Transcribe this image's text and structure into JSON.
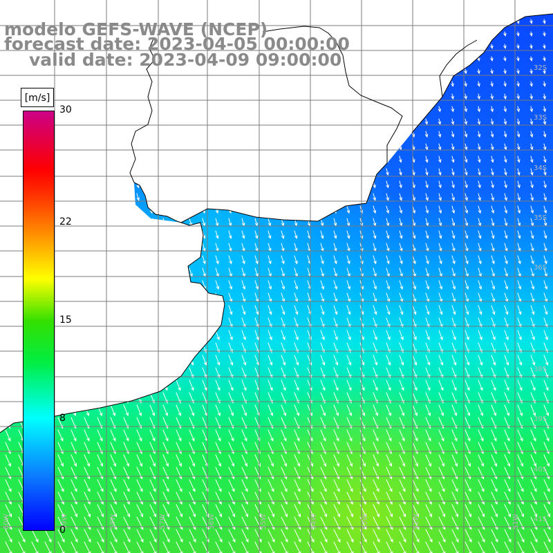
{
  "title": {
    "model": "modelo GEFS-WAVE (NCEP)",
    "forecast": "forecast date: 2023-04-05 00:00:00",
    "valid": "valid date: 2023-04-09 09:00:00"
  },
  "colorbar": {
    "unit": "[m/s]",
    "ticks": [
      "30",
      "22",
      "15",
      "8",
      "0"
    ],
    "tick_values": [
      30,
      22,
      15,
      8,
      0
    ]
  },
  "grid": {
    "lat_labels": [
      "32S",
      "33S",
      "34S",
      "35S",
      "36S",
      "38S",
      "39S",
      "40S",
      "41S"
    ],
    "lon_labels": [
      "60W",
      "59W",
      "58W",
      "57W",
      "56W",
      "55W",
      "54W",
      "53W",
      "52W",
      "51W"
    ]
  },
  "colors": {
    "land": "#ffffff",
    "coastline": "#000000",
    "grid": "#7a7a7a",
    "arrows": "#ffffff",
    "scale_low": "#0000ff",
    "scale_mid": "#00ffff",
    "scale_green": "#00ee44",
    "scale_high": "#cc0088"
  }
}
